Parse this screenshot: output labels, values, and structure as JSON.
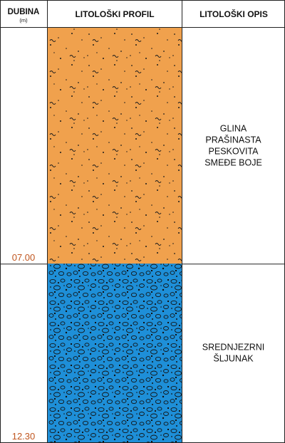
{
  "header": {
    "depth_title": "DUBINA",
    "depth_unit": "(m)",
    "profile_title": "LITOLOŠKI PROFIL",
    "description_title": "LITOLOŠKI OPIS"
  },
  "layers": [
    {
      "top_m": 0,
      "bottom_m": 7.0,
      "bottom_label": "07.00",
      "fill": "#f0a14d",
      "pattern": "dots-and-tilde",
      "description_lines": [
        "GLINA",
        "PRAŠINASTA",
        "PESKOVITA",
        "SMEĐE BOJE"
      ]
    },
    {
      "top_m": 7.0,
      "bottom_m": 12.3,
      "bottom_label": "12.30",
      "fill": "#1e8fd8",
      "pattern": "gravel",
      "description_lines": [
        "SREDNJEZRNI",
        "ŠLJUNAK"
      ]
    }
  ],
  "colors": {
    "depth_label": "#c0561f",
    "border": "#222222"
  }
}
